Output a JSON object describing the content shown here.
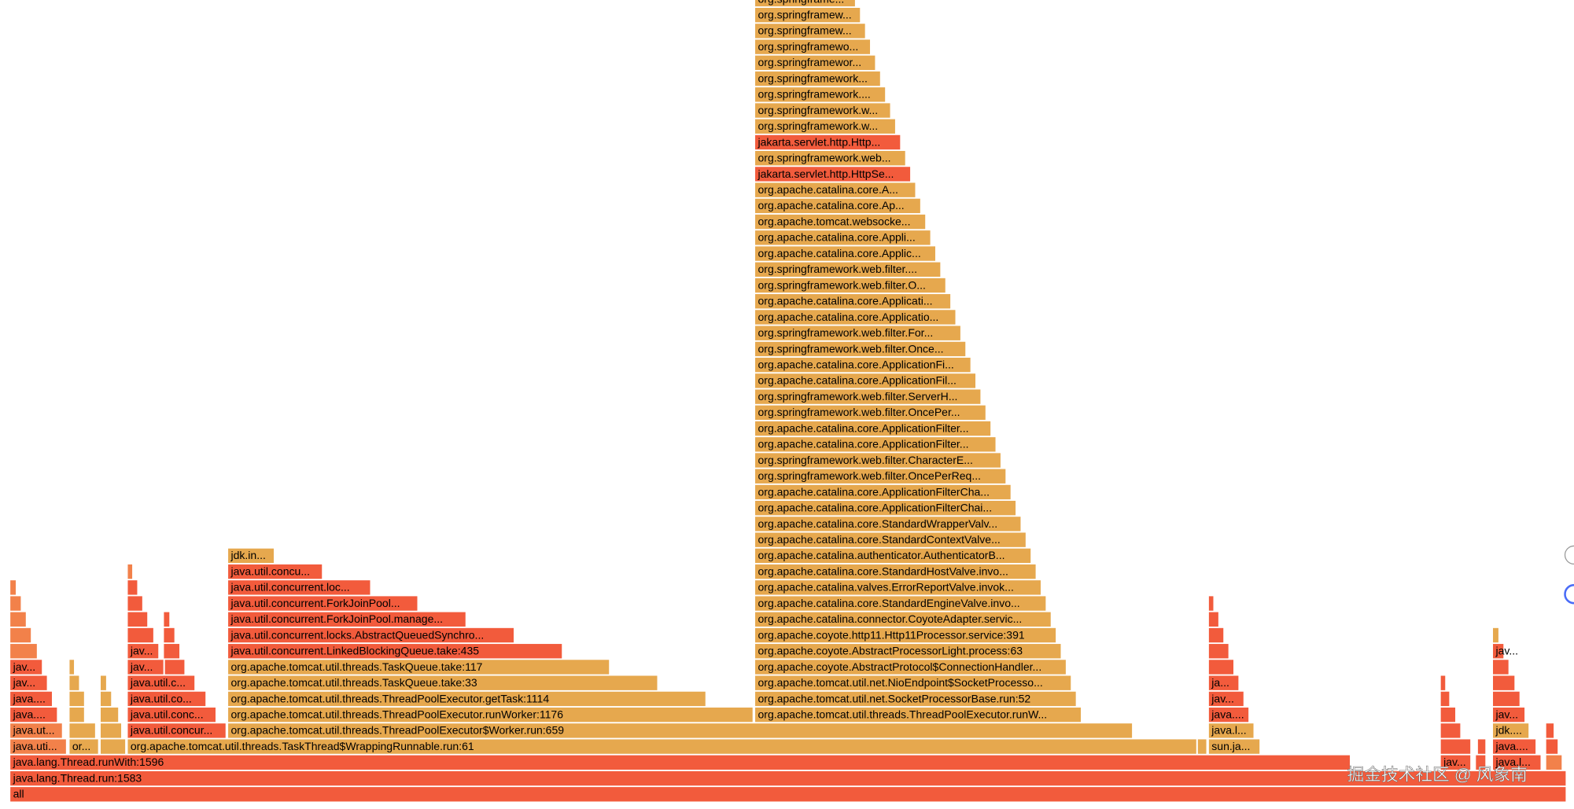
{
  "frames": [
    "all",
    "java.lang.Thread.run:1583",
    "java.lang.Thread.runWith:1596",
    "jav...",
    "java.l...",
    "java.uti...",
    "or...",
    "org.apache.tomcat.util.threads.TaskThread$WrappingRunnable.run:61",
    "sun.ja...",
    "java....",
    "java.ut...",
    "java.util.concur...",
    "org.apache.tomcat.util.threads.ThreadPoolExecutor$Worker.run:659",
    "java.l...",
    "jdk....",
    "java....",
    "java.util.conc...",
    "org.apache.tomcat.util.threads.ThreadPoolExecutor.runWorker:1176",
    "org.apache.tomcat.util.threads.ThreadPoolExecutor.runW...",
    "java....",
    "jav...",
    "java....",
    "java.util.co...",
    "org.apache.tomcat.util.threads.ThreadPoolExecutor.getTask:1114",
    "org.apache.tomcat.util.net.SocketProcessorBase.run:52",
    "jav...",
    "jav...",
    "jav...",
    "java.util.c...",
    "org.apache.tomcat.util.threads.TaskQueue.take:33",
    "org.apache.tomcat.util.net.NioEndpoint$SocketProcesso...",
    "ja...",
    "jav...",
    "jav...",
    "org.apache.tomcat.util.threads.TaskQueue.take:117",
    "org.apache.coyote.AbstractProtocol$ConnectionHandler...",
    "jav...",
    "java.util.concurrent.LinkedBlockingQueue.take:435",
    "org.apache.coyote.AbstractProcessorLight.process:63",
    "java.util.concurrent.locks.AbstractQueuedSynchro...",
    "org.apache.coyote.http11.Http11Processor.service:391",
    "java.util.concurrent.ForkJoinPool.manage...",
    "org.apache.catalina.connector.CoyoteAdapter.servic...",
    "java.util.concurrent.ForkJoinPool...",
    "org.apache.catalina.core.StandardEngineValve.invo...",
    "java.util.concurrent.loc...",
    "org.apache.catalina.valves.ErrorReportValve.invok...",
    "java.util.concu...",
    "org.apache.catalina.core.StandardHostValve.invo...",
    "jdk.in...",
    "org.apache.catalina.authenticator.AuthenticatorB...",
    "org.apache.catalina.core.StandardContextValve...",
    "org.apache.catalina.core.StandardWrapperValv...",
    "org.apache.catalina.core.ApplicationFilterChai...",
    "org.apache.catalina.core.ApplicationFilterCha...",
    "org.springframework.web.filter.OncePerReq...",
    "org.springframework.web.filter.CharacterE...",
    "org.apache.catalina.core.ApplicationFilter...",
    "org.apache.catalina.core.ApplicationFilter...",
    "org.springframework.web.filter.OncePer...",
    "org.springframework.web.filter.ServerH...",
    "org.apache.catalina.core.ApplicationFil...",
    "org.apache.catalina.core.ApplicationFi...",
    "org.springframework.web.filter.Once...",
    "org.springframework.web.filter.For...",
    "org.apache.catalina.core.Applicatio...",
    "org.apache.catalina.core.Applicati...",
    "org.springframework.web.filter.O...",
    "org.springframework.web.filter....",
    "org.apache.catalina.core.Applic...",
    "org.apache.catalina.core.Appli...",
    "org.apache.tomcat.websocke...",
    "org.apache.catalina.core.Ap...",
    "org.apache.catalina.core.A...",
    "jakarta.servlet.http.HttpSe...",
    "org.springframework.web...",
    "jakarta.servlet.http.Http...",
    "org.springframework.w...",
    "org.springframework.w...",
    "org.springframework....",
    "org.springframework...",
    "org.springframewor...",
    "org.springframewo...",
    "org.springframew...",
    "org.springframew...",
    "org.springframe..."
  ],
  "watermark": "掘金技术社区 @ 风象南"
}
